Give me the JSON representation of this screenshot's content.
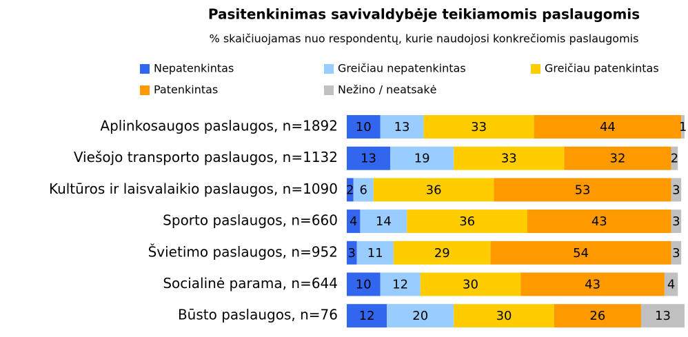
{
  "chart_data": {
    "type": "stacked-bar-horizontal",
    "title": "Pasitenkinimas savivaldybėje teikiamomis paslaugomis",
    "subtitle": "% skaičiuojamas nuo respondentų, kurie naudojosi konkrečiomis paslaugomis",
    "categories": [
      "Aplinkosaugos paslaugos, n=1892",
      "Viešojo transporto paslaugos, n=1132",
      "Kultūros ir laisvalaikio paslaugos, n=1090",
      "Sporto paslaugos, n=660",
      "Švietimo paslaugos, n=952",
      "Socialinė parama, n=644",
      "Būsto paslaugos, n=76"
    ],
    "series": [
      {
        "name": "Nepatenkintas",
        "color": "#3366ee",
        "values": [
          10,
          13,
          2,
          4,
          3,
          10,
          12
        ]
      },
      {
        "name": "Greičiau nepatenkintas",
        "color": "#99ccff",
        "values": [
          13,
          19,
          6,
          14,
          11,
          12,
          20
        ]
      },
      {
        "name": "Greičiau patenkintas",
        "color": "#ffcc00",
        "values": [
          33,
          33,
          36,
          36,
          29,
          30,
          30
        ]
      },
      {
        "name": "Patenkintas",
        "color": "#ff9900",
        "values": [
          44,
          32,
          53,
          43,
          54,
          43,
          26
        ]
      },
      {
        "name": "Nežino / neatsakė",
        "color": "#c0c0c0",
        "values": [
          1,
          2,
          3,
          3,
          3,
          4,
          13
        ]
      }
    ]
  }
}
